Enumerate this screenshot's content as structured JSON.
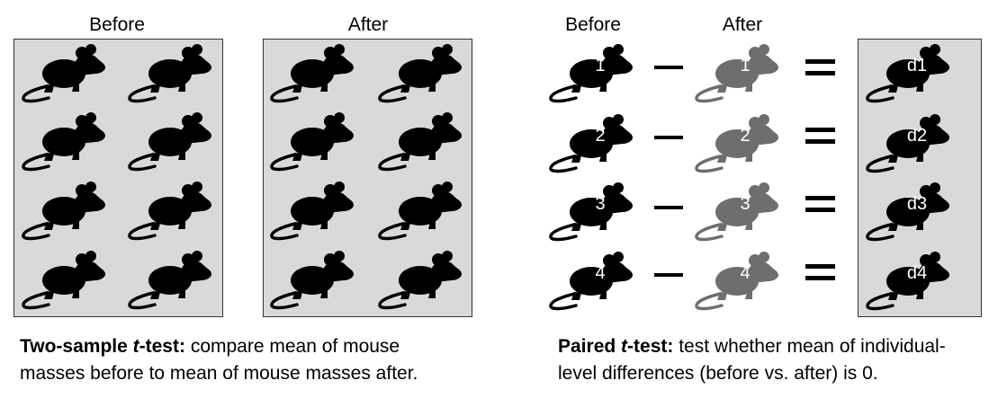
{
  "left_panel": {
    "before_label": "Before",
    "after_label": "After"
  },
  "right_panel": {
    "before_label": "Before",
    "after_label": "After",
    "pairs": [
      {
        "before_id": "1",
        "after_id": "1",
        "diff_label": "d1"
      },
      {
        "before_id": "2",
        "after_id": "2",
        "diff_label": "d2"
      },
      {
        "before_id": "3",
        "after_id": "3",
        "diff_label": "d3"
      },
      {
        "before_id": "4",
        "after_id": "4",
        "diff_label": "d4"
      }
    ]
  },
  "captions": {
    "two_sample_pre": "Two-sample ",
    "two_sample_t": "t",
    "two_sample_post": "-test:",
    "two_sample_text": " compare mean of mouse masses before to mean of mouse masses after.",
    "paired_pre": "Paired ",
    "paired_t": "t",
    "paired_post": "-test:",
    "paired_text": " test whether mean of individual-level differences (before vs. after) is 0."
  },
  "colors": {
    "before_mouse": "#000000",
    "after_mouse": "#6e6e6e",
    "box_fill": "#d9d9d9"
  }
}
